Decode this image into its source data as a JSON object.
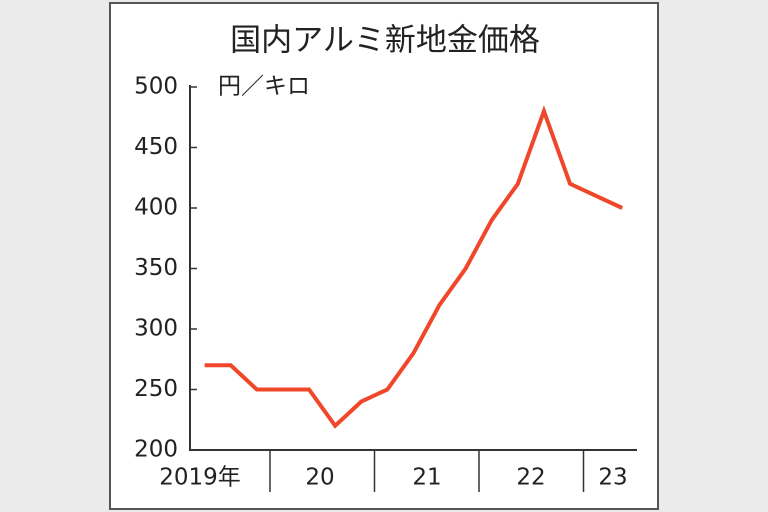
{
  "chart_data": {
    "type": "line",
    "title": "国内アルミ新地金価格",
    "unit_label": "円／キロ",
    "year_labels": [
      "2019年",
      "20",
      "21",
      "22",
      "23"
    ],
    "values": [
      270,
      270,
      250,
      250,
      250,
      220,
      240,
      250,
      280,
      320,
      350,
      390,
      420,
      480,
      420,
      410,
      400
    ],
    "color": "#f0462a",
    "ylim": [
      200,
      500
    ],
    "yticks": [
      200,
      250,
      300,
      350,
      400,
      450,
      500
    ],
    "grid": false
  }
}
